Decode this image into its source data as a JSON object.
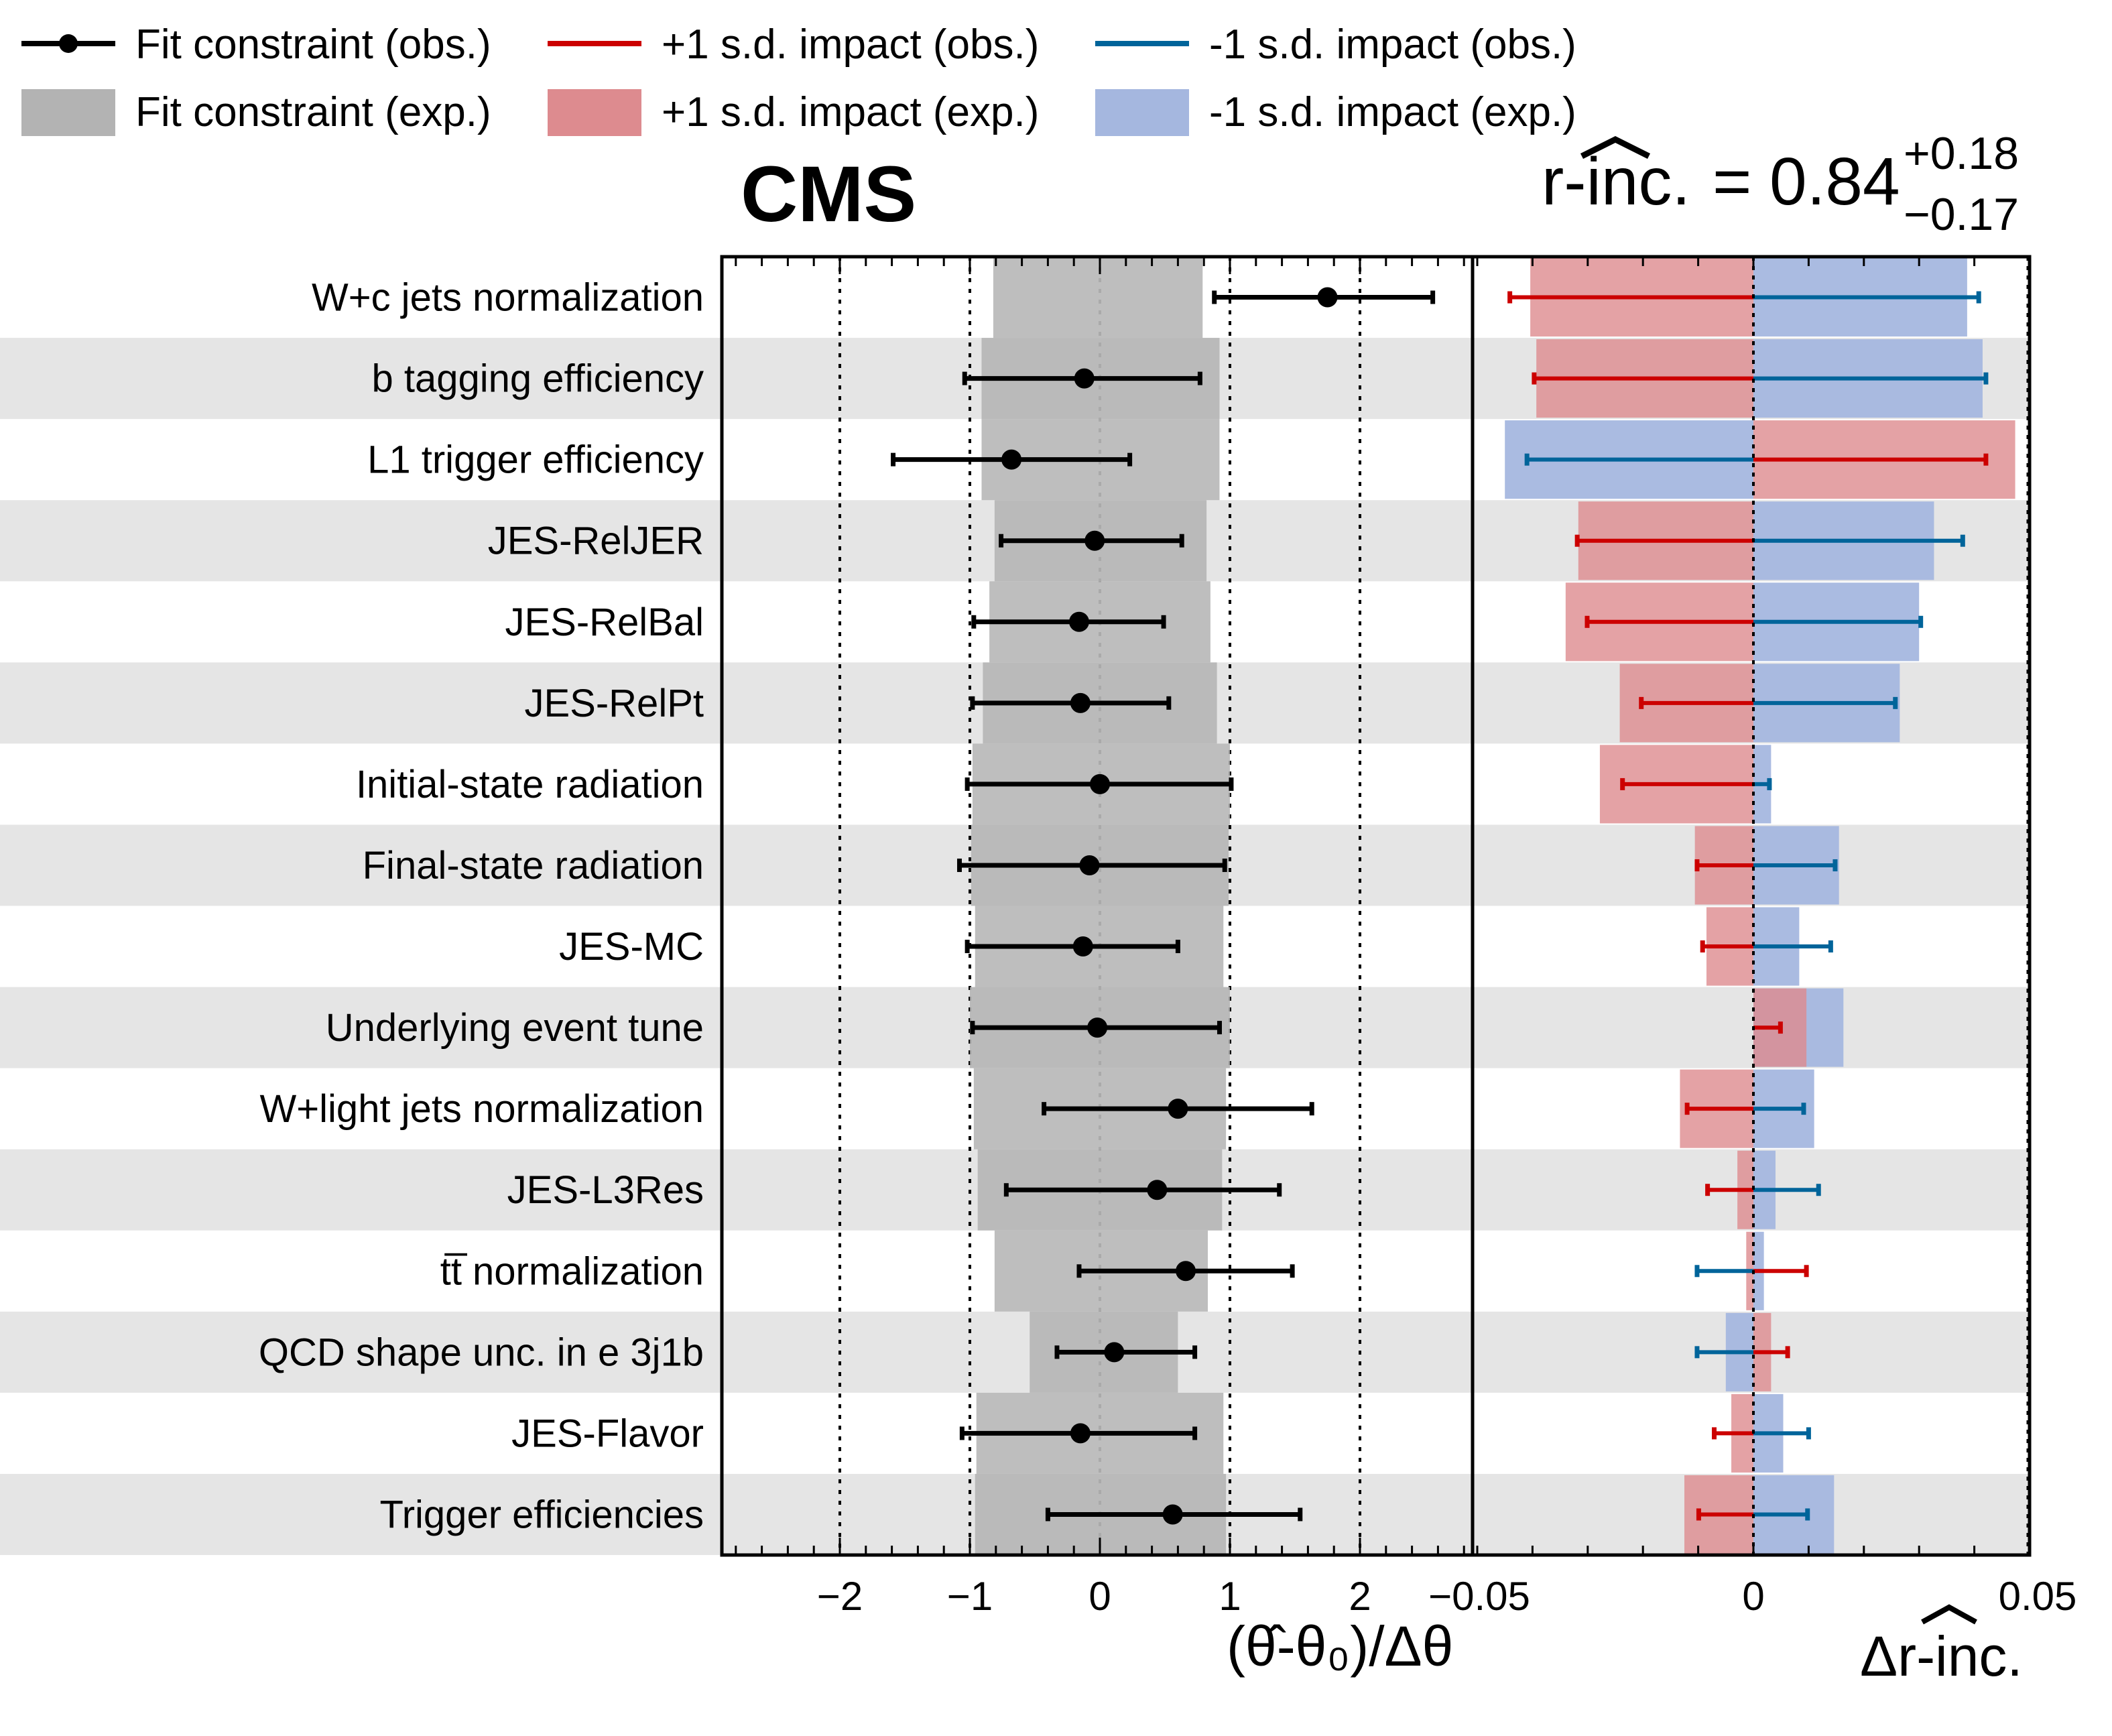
{
  "chart_data": {
    "type": "table",
    "experiment_label": "CMS",
    "poi": {
      "name": "r-inc.",
      "value": "0.84",
      "err_up": "+0.18",
      "err_down": "−0.17"
    },
    "legend": [
      {
        "key": "fit_obs",
        "label": "Fit constraint (obs.)",
        "color": "#000000",
        "style": "line-marker"
      },
      {
        "key": "plus_obs",
        "label": "+1 s.d. impact (obs.)",
        "color": "#cc0000",
        "style": "line"
      },
      {
        "key": "minus_obs",
        "label": "-1 s.d. impact (obs.)",
        "color": "#00649a",
        "style": "line"
      },
      {
        "key": "fit_exp",
        "label": "Fit constraint (exp.)",
        "color": "#b3b3b3",
        "style": "box"
      },
      {
        "key": "plus_exp",
        "label": "+1 s.d. impact (exp.)",
        "color": "#dd8b8f",
        "style": "box"
      },
      {
        "key": "minus_exp",
        "label": "-1 s.d. impact (exp.)",
        "color": "#a5b7df",
        "style": "box"
      }
    ],
    "legend_placement": "top",
    "pull_panel": {
      "xlabel": "(θ̂-θ₀)/Δθ",
      "xlim": [
        -2.88,
        2.9
      ],
      "ticks": [
        -2,
        -1,
        0,
        1,
        2
      ],
      "tick_labels": [
        "−2",
        "−1",
        "0",
        "1",
        "2"
      ],
      "grid": "dotted at integer values"
    },
    "impact_panel": {
      "xlabel": "Δr-inc.",
      "xlim": [
        -0.05,
        0.05
      ],
      "ticks": [
        -0.05,
        0,
        0.05
      ],
      "tick_labels": [
        "−0.05",
        "0",
        "0.05"
      ]
    },
    "rows": [
      {
        "name": "W+c jets normalization",
        "pull": 1.75,
        "pull_lo": 0.88,
        "pull_hi": 2.56,
        "exp_lo": -0.82,
        "exp_hi": 0.79,
        "imp_plus_obs": -0.0441,
        "imp_minus_obs": 0.0408,
        "imp_plus_exp": -0.0404,
        "imp_minus_exp": 0.0387
      },
      {
        "name": "b tagging efficiency",
        "pull": -0.12,
        "pull_lo": -1.04,
        "pull_hi": 0.77,
        "exp_lo": -0.91,
        "exp_hi": 0.92,
        "imp_plus_obs": -0.0397,
        "imp_minus_obs": 0.0421,
        "imp_plus_exp": -0.0393,
        "imp_minus_exp": 0.0415
      },
      {
        "name": "L1 trigger efficiency",
        "pull": -0.68,
        "pull_lo": -1.59,
        "pull_hi": 0.23,
        "exp_lo": -0.91,
        "exp_hi": 0.92,
        "imp_plus_obs": 0.0421,
        "imp_minus_obs": -0.041,
        "imp_plus_exp": 0.0474,
        "imp_minus_exp": -0.045
      },
      {
        "name": "JES-RelJER",
        "pull": -0.04,
        "pull_lo": -0.76,
        "pull_hi": 0.63,
        "exp_lo": -0.81,
        "exp_hi": 0.82,
        "imp_plus_obs": -0.0319,
        "imp_minus_obs": 0.0379,
        "imp_plus_exp": -0.0317,
        "imp_minus_exp": 0.0327
      },
      {
        "name": "JES-RelBal",
        "pull": -0.16,
        "pull_lo": -0.97,
        "pull_hi": 0.49,
        "exp_lo": -0.85,
        "exp_hi": 0.85,
        "imp_plus_obs": -0.0301,
        "imp_minus_obs": 0.0303,
        "imp_plus_exp": -0.034,
        "imp_minus_exp": 0.03
      },
      {
        "name": "JES-RelPt",
        "pull": -0.15,
        "pull_lo": -0.98,
        "pull_hi": 0.53,
        "exp_lo": -0.9,
        "exp_hi": 0.9,
        "imp_plus_obs": -0.0203,
        "imp_minus_obs": 0.0257,
        "imp_plus_exp": -0.0242,
        "imp_minus_exp": 0.0265
      },
      {
        "name": "Initial-state radiation",
        "pull": 0.0,
        "pull_lo": -1.02,
        "pull_hi": 1.01,
        "exp_lo": -0.98,
        "exp_hi": 1.0,
        "imp_plus_obs": -0.0237,
        "imp_minus_obs": 0.0029,
        "imp_plus_exp": -0.0278,
        "imp_minus_exp": 0.0032
      },
      {
        "name": "Final-state radiation",
        "pull": -0.08,
        "pull_lo": -1.08,
        "pull_hi": 0.96,
        "exp_lo": -0.99,
        "exp_hi": 0.99,
        "imp_plus_obs": -0.0102,
        "imp_minus_obs": 0.0148,
        "imp_plus_exp": -0.0106,
        "imp_minus_exp": 0.0155
      },
      {
        "name": "JES-MC",
        "pull": -0.13,
        "pull_lo": -1.02,
        "pull_hi": 0.6,
        "exp_lo": -0.96,
        "exp_hi": 0.95,
        "imp_plus_obs": -0.0092,
        "imp_minus_obs": 0.014,
        "imp_plus_exp": -0.0085,
        "imp_minus_exp": 0.0083
      },
      {
        "name": "Underlying event tune",
        "pull": -0.02,
        "pull_lo": -0.98,
        "pull_hi": 0.92,
        "exp_lo": -1.0,
        "exp_hi": 1.0,
        "imp_plus_obs": 0.0049,
        "imp_minus_obs": 0.0,
        "imp_plus_exp": 0.0096,
        "imp_minus_exp": 0.0163
      },
      {
        "name": "W+light jets normalization",
        "pull": 0.6,
        "pull_lo": -0.43,
        "pull_hi": 1.63,
        "exp_lo": -0.97,
        "exp_hi": 0.97,
        "imp_plus_obs": -0.012,
        "imp_minus_obs": 0.0091,
        "imp_plus_exp": -0.0133,
        "imp_minus_exp": 0.011
      },
      {
        "name": "JES-L3Res",
        "pull": 0.44,
        "pull_lo": -0.72,
        "pull_hi": 1.38,
        "exp_lo": -0.94,
        "exp_hi": 0.94,
        "imp_plus_obs": -0.0083,
        "imp_minus_obs": 0.0118,
        "imp_plus_exp": -0.0029,
        "imp_minus_exp": 0.004
      },
      {
        "name": "t̅t normalization",
        "display_name": "tt̅ normalization",
        "pull": 0.66,
        "pull_lo": -0.16,
        "pull_hi": 1.48,
        "exp_lo": -0.81,
        "exp_hi": 0.83,
        "imp_plus_obs": 0.0096,
        "imp_minus_obs": -0.0102,
        "imp_plus_exp": -0.0013,
        "imp_minus_exp": 0.0019
      },
      {
        "name": "QCD shape unc. in e 3j1b",
        "pull": 0.11,
        "pull_lo": -0.33,
        "pull_hi": 0.73,
        "exp_lo": -0.54,
        "exp_hi": 0.6,
        "imp_plus_obs": 0.0062,
        "imp_minus_obs": -0.0102,
        "imp_plus_exp": 0.0032,
        "imp_minus_exp": -0.005
      },
      {
        "name": "JES-Flavor",
        "pull": -0.15,
        "pull_lo": -1.06,
        "pull_hi": 0.73,
        "exp_lo": -0.95,
        "exp_hi": 0.95,
        "imp_plus_obs": -0.0071,
        "imp_minus_obs": 0.01,
        "imp_plus_exp": -0.004,
        "imp_minus_exp": 0.0054
      },
      {
        "name": "Trigger efficiencies",
        "pull": 0.56,
        "pull_lo": -0.4,
        "pull_hi": 1.54,
        "exp_lo": -0.96,
        "exp_hi": 0.97,
        "imp_plus_obs": -0.0099,
        "imp_minus_obs": 0.0098,
        "imp_plus_exp": -0.0125,
        "imp_minus_exp": 0.0146
      }
    ],
    "colors": {
      "row_alt": "#e5e5e5",
      "band": "#b3b3b3",
      "plus_line": "#cc0000",
      "minus_line": "#00649a",
      "plus_box": "#dd8b8f",
      "minus_box": "#a5b7df",
      "marker": "#000000"
    }
  }
}
